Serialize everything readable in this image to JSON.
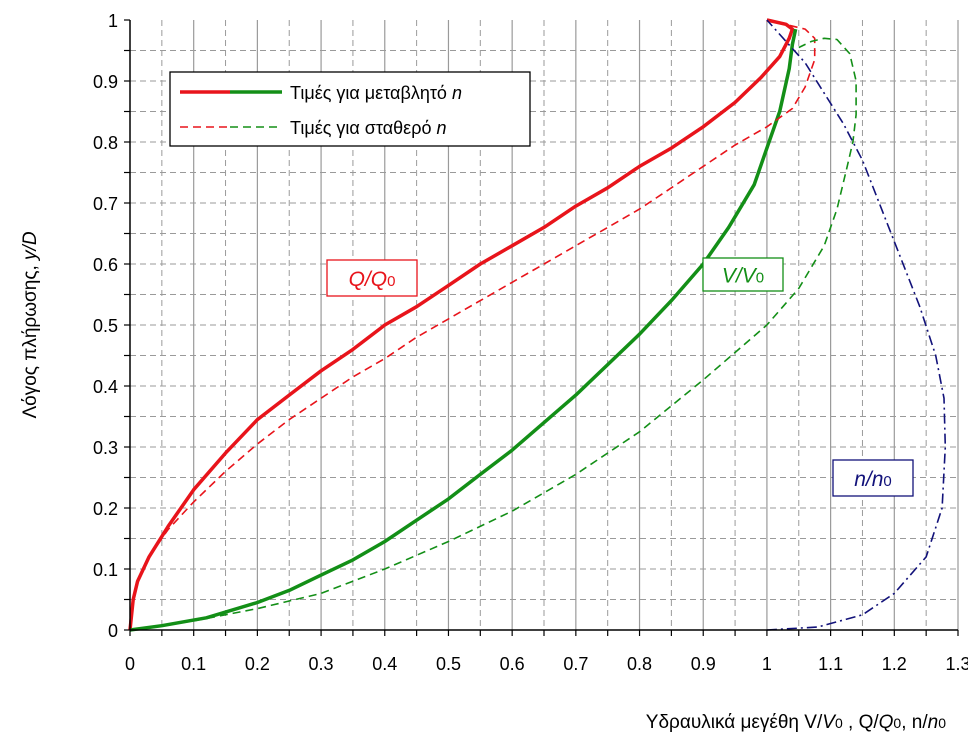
{
  "chart_data": {
    "type": "line",
    "xlabel": "Υδραυλικά μεγέθη V/V0 , Q/Q0, n/n0",
    "ylabel": "Λόγος πλήρωσης, y/D",
    "xlim": [
      0,
      1.3
    ],
    "ylim": [
      0,
      1
    ],
    "x_ticks": [
      "0",
      "0.1",
      "0.2",
      "0.3",
      "0.4",
      "0.5",
      "0.6",
      "0.7",
      "0.8",
      "0.9",
      "1",
      "1.1",
      "1.2",
      "1.3"
    ],
    "y_ticks": [
      "0",
      "0.1",
      "0.2",
      "0.3",
      "0.4",
      "0.5",
      "0.6",
      "0.7",
      "0.8",
      "0.9",
      "1"
    ],
    "grid": true,
    "legend_position": "top-left",
    "legend": [
      {
        "label": "Τιμές για μεταβλητό n",
        "style": "solid"
      },
      {
        "label": "Τιμές για σταθερό n",
        "style": "dashed"
      }
    ],
    "annotations": [
      {
        "text": "Q/Q0",
        "color": "#e8141b"
      },
      {
        "text": "V/V0",
        "color": "#138f17"
      },
      {
        "text": "n/n0",
        "color": "#12127a"
      }
    ],
    "series": [
      {
        "color": "#e8141b",
        "style": "solid",
        "points": [
          [
            0,
            0
          ],
          [
            0.005,
            0.05
          ],
          [
            0.012,
            0.08
          ],
          [
            0.03,
            0.12
          ],
          [
            0.06,
            0.17
          ],
          [
            0.1,
            0.23
          ],
          [
            0.15,
            0.29
          ],
          [
            0.2,
            0.345
          ],
          [
            0.25,
            0.385
          ],
          [
            0.3,
            0.425
          ],
          [
            0.35,
            0.46
          ],
          [
            0.4,
            0.5
          ],
          [
            0.45,
            0.53
          ],
          [
            0.5,
            0.565
          ],
          [
            0.55,
            0.6
          ],
          [
            0.6,
            0.63
          ],
          [
            0.65,
            0.66
          ],
          [
            0.7,
            0.695
          ],
          [
            0.75,
            0.725
          ],
          [
            0.8,
            0.76
          ],
          [
            0.85,
            0.79
          ],
          [
            0.9,
            0.825
          ],
          [
            0.95,
            0.865
          ],
          [
            0.99,
            0.905
          ],
          [
            1.02,
            0.94
          ],
          [
            1.035,
            0.97
          ],
          [
            1.04,
            0.985
          ],
          [
            1.03,
            0.993
          ],
          [
            1.0,
            1.0
          ]
        ]
      },
      {
        "color": "#138f17",
        "style": "solid",
        "points": [
          [
            0,
            0
          ],
          [
            0.05,
            0.007
          ],
          [
            0.12,
            0.02
          ],
          [
            0.2,
            0.045
          ],
          [
            0.25,
            0.065
          ],
          [
            0.3,
            0.09
          ],
          [
            0.35,
            0.115
          ],
          [
            0.4,
            0.145
          ],
          [
            0.45,
            0.18
          ],
          [
            0.5,
            0.215
          ],
          [
            0.55,
            0.255
          ],
          [
            0.6,
            0.295
          ],
          [
            0.65,
            0.34
          ],
          [
            0.7,
            0.385
          ],
          [
            0.75,
            0.435
          ],
          [
            0.8,
            0.485
          ],
          [
            0.85,
            0.54
          ],
          [
            0.9,
            0.6
          ],
          [
            0.94,
            0.66
          ],
          [
            0.98,
            0.73
          ],
          [
            1.0,
            0.79
          ],
          [
            1.02,
            0.85
          ],
          [
            1.035,
            0.92
          ],
          [
            1.04,
            0.96
          ],
          [
            1.045,
            0.985
          ]
        ]
      },
      {
        "color": "#e8141b",
        "style": "dashed",
        "points": [
          [
            0,
            0
          ],
          [
            0.005,
            0.05
          ],
          [
            0.012,
            0.08
          ],
          [
            0.03,
            0.12
          ],
          [
            0.06,
            0.165
          ],
          [
            0.1,
            0.21
          ],
          [
            0.15,
            0.26
          ],
          [
            0.2,
            0.305
          ],
          [
            0.25,
            0.345
          ],
          [
            0.3,
            0.38
          ],
          [
            0.35,
            0.415
          ],
          [
            0.4,
            0.445
          ],
          [
            0.45,
            0.48
          ],
          [
            0.5,
            0.51
          ],
          [
            0.55,
            0.54
          ],
          [
            0.6,
            0.57
          ],
          [
            0.65,
            0.6
          ],
          [
            0.7,
            0.63
          ],
          [
            0.75,
            0.66
          ],
          [
            0.8,
            0.69
          ],
          [
            0.85,
            0.725
          ],
          [
            0.9,
            0.76
          ],
          [
            0.95,
            0.795
          ],
          [
            1.0,
            0.825
          ],
          [
            1.04,
            0.855
          ],
          [
            1.06,
            0.89
          ],
          [
            1.075,
            0.935
          ],
          [
            1.075,
            0.97
          ],
          [
            1.06,
            0.985
          ],
          [
            1.0,
            1.0
          ]
        ]
      },
      {
        "color": "#138f17",
        "style": "dashed",
        "points": [
          [
            0,
            0
          ],
          [
            0.1,
            0.015
          ],
          [
            0.2,
            0.035
          ],
          [
            0.3,
            0.06
          ],
          [
            0.35,
            0.08
          ],
          [
            0.4,
            0.1
          ],
          [
            0.5,
            0.145
          ],
          [
            0.6,
            0.195
          ],
          [
            0.7,
            0.255
          ],
          [
            0.8,
            0.325
          ],
          [
            0.9,
            0.41
          ],
          [
            1.0,
            0.5
          ],
          [
            1.05,
            0.56
          ],
          [
            1.09,
            0.63
          ],
          [
            1.11,
            0.69
          ],
          [
            1.125,
            0.755
          ],
          [
            1.135,
            0.8
          ],
          [
            1.14,
            0.845
          ],
          [
            1.14,
            0.9
          ],
          [
            1.13,
            0.945
          ],
          [
            1.11,
            0.968
          ],
          [
            1.09,
            0.97
          ],
          [
            1.07,
            0.965
          ],
          [
            1.05,
            0.955
          ]
        ]
      },
      {
        "color": "#12127a",
        "style": "dashdot",
        "points": [
          [
            1.0,
            0
          ],
          [
            1.08,
            0.005
          ],
          [
            1.15,
            0.025
          ],
          [
            1.2,
            0.06
          ],
          [
            1.25,
            0.12
          ],
          [
            1.275,
            0.2
          ],
          [
            1.28,
            0.3
          ],
          [
            1.278,
            0.38
          ],
          [
            1.265,
            0.45
          ],
          [
            1.24,
            0.53
          ],
          [
            1.21,
            0.61
          ],
          [
            1.18,
            0.69
          ],
          [
            1.15,
            0.77
          ],
          [
            1.12,
            0.83
          ],
          [
            1.09,
            0.88
          ],
          [
            1.06,
            0.93
          ],
          [
            1.03,
            0.965
          ],
          [
            1.0,
            1.0
          ]
        ]
      }
    ]
  }
}
